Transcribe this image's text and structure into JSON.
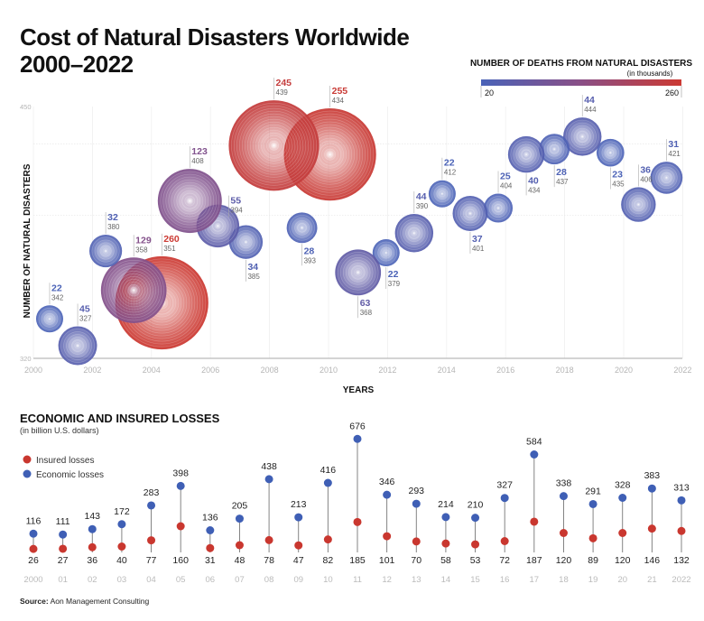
{
  "title_line1": "Cost of Natural Disasters Worldwide",
  "title_line2": "2000–2022",
  "colors": {
    "low": "#4a63b8",
    "high": "#cc3a33",
    "insured": "#c9372f",
    "economic": "#3f5fb5"
  },
  "chart_data": [
    {
      "type": "scatter",
      "subtype": "bubble",
      "xlabel": "YEARS",
      "ylabel": "NUMBER OF NATURAL DISASTERS",
      "x_ticks": [
        "2000",
        "2002",
        "2004",
        "2006",
        "2008",
        "2010",
        "2012",
        "2014",
        "2016",
        "2018",
        "2020",
        "2022"
      ],
      "y_ticks": [
        "450",
        "320"
      ],
      "xlim": [
        2000,
        2022
      ],
      "ylim": [
        320,
        450
      ],
      "grid": true,
      "size_legend": {
        "title": "NUMBER OF DEATHS FROM NATURAL DISASTERS",
        "unit": "(in thousands)",
        "min_label": "20",
        "max_label": "260"
      },
      "points": [
        {
          "year": 2000,
          "deaths": 22,
          "disasters": 342
        },
        {
          "year": 2001,
          "deaths": 45,
          "disasters": 327
        },
        {
          "year": 2002,
          "deaths": 32,
          "disasters": 380
        },
        {
          "year": 2003,
          "deaths": 129,
          "disasters": 358
        },
        {
          "year": 2004,
          "deaths": 260,
          "disasters": 351
        },
        {
          "year": 2005,
          "deaths": 123,
          "disasters": 408
        },
        {
          "year": 2006,
          "deaths": 55,
          "disasters": 394
        },
        {
          "year": 2007,
          "deaths": 34,
          "disasters": 385
        },
        {
          "year": 2008,
          "deaths": 245,
          "disasters": 439
        },
        {
          "year": 2009,
          "deaths": 28,
          "disasters": 393
        },
        {
          "year": 2010,
          "deaths": 255,
          "disasters": 434
        },
        {
          "year": 2011,
          "deaths": 63,
          "disasters": 368
        },
        {
          "year": 2012,
          "deaths": 22,
          "disasters": 379
        },
        {
          "year": 2013,
          "deaths": 44,
          "disasters": 390
        },
        {
          "year": 2014,
          "deaths": 22,
          "disasters": 412
        },
        {
          "year": 2015,
          "deaths": 37,
          "disasters": 401
        },
        {
          "year": 2016,
          "deaths": 25,
          "disasters": 404
        },
        {
          "year": 2017,
          "deaths": 40,
          "disasters": 434
        },
        {
          "year": 2018,
          "deaths": 28,
          "disasters": 437
        },
        {
          "year": 2019,
          "deaths": 44,
          "disasters": 444
        },
        {
          "year": 2020,
          "deaths": 23,
          "disasters": 435
        },
        {
          "year": 2021,
          "deaths": 36,
          "disasters": 406
        },
        {
          "year": 2022,
          "deaths": 31,
          "disasters": 421
        }
      ]
    },
    {
      "type": "line",
      "subtype": "dumbbell",
      "title": "ECONOMIC AND INSURED  LOSSES",
      "unit": "(in billion U.S. dollars)",
      "legend_position": "top-left",
      "categories": [
        "2000",
        "01",
        "02",
        "03",
        "04",
        "05",
        "06",
        "07",
        "08",
        "09",
        "10",
        "11",
        "12",
        "13",
        "14",
        "15",
        "16",
        "17",
        "18",
        "19",
        "20",
        "21",
        "2022"
      ],
      "series": [
        {
          "name": "Insured losses",
          "values": [
            26,
            27,
            36,
            40,
            77,
            160,
            31,
            48,
            78,
            47,
            82,
            185,
            101,
            70,
            58,
            53,
            72,
            187,
            120,
            89,
            120,
            146,
            132
          ]
        },
        {
          "name": "Economic losses",
          "values": [
            116,
            111,
            143,
            172,
            283,
            398,
            136,
            205,
            438,
            213,
            416,
            676,
            346,
            293,
            214,
            210,
            327,
            584,
            338,
            291,
            328,
            383,
            313
          ]
        }
      ]
    }
  ],
  "source_label": "Source:",
  "source_text": "Aon Management Consulting"
}
